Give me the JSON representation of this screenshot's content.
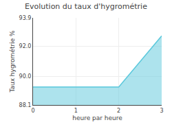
{
  "chart_data": {
    "type": "area",
    "title": "Evolution du taux d'hygrométrie",
    "xlabel": "heure par heure",
    "ylabel": "Taux hygrométrie %",
    "x": [
      0,
      2,
      3
    ],
    "values": [
      89.3,
      89.3,
      92.7
    ],
    "color": "#5bc8dc",
    "xlim": [
      0,
      3
    ],
    "ylim": [
      88.1,
      93.9
    ],
    "xticks": [
      0,
      1,
      2,
      3
    ],
    "yticks": [
      88.1,
      {
        "value": 90.0,
        "label": "90.0"
      },
      {
        "value": 92.0,
        "label": "92.0"
      },
      93.9
    ],
    "grid": true
  }
}
